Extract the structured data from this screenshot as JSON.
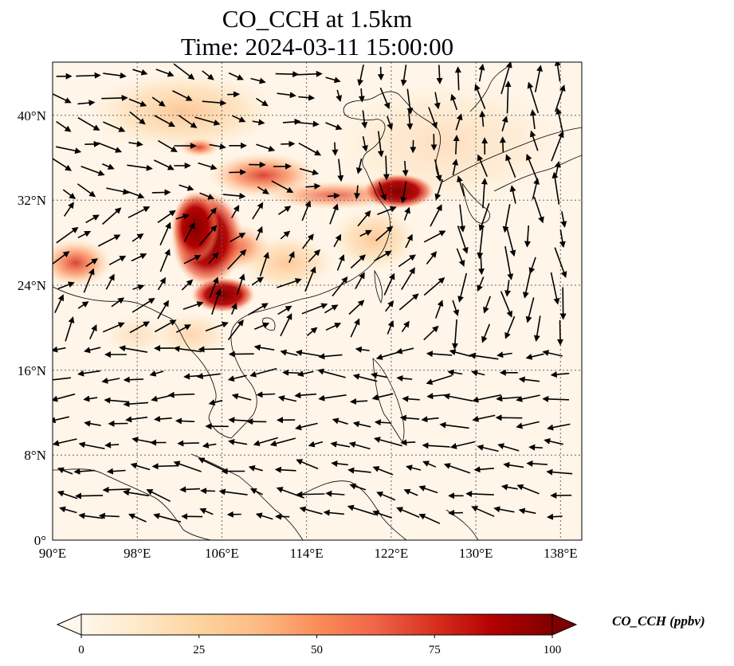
{
  "title": {
    "line1": "CO_CCH at 1.5km",
    "line2": "Time: 2024-03-11 15:00:00"
  },
  "map": {
    "lon_range": [
      90,
      140
    ],
    "lat_range": [
      0,
      45
    ],
    "lon_ticks": [
      "90°E",
      "98°E",
      "106°E",
      "114°E",
      "122°E",
      "130°E",
      "138°E"
    ],
    "lat_ticks": [
      "0°",
      "8°N",
      "16°N",
      "24°N",
      "32°N",
      "40°N"
    ],
    "gridlines": true,
    "wind_vectors": true
  },
  "colorbar": {
    "label": "CO_CCH (ppbv)",
    "ticks": [
      "0",
      "25",
      "50",
      "75",
      "100"
    ],
    "range": [
      0,
      100
    ],
    "extend": "both",
    "colormap": "OrRd",
    "colors": [
      "#fff7ec",
      "#fee8c8",
      "#fdd49e",
      "#fdbb84",
      "#fc8d59",
      "#ef6548",
      "#d7301f",
      "#b30000",
      "#7f0000"
    ]
  }
}
